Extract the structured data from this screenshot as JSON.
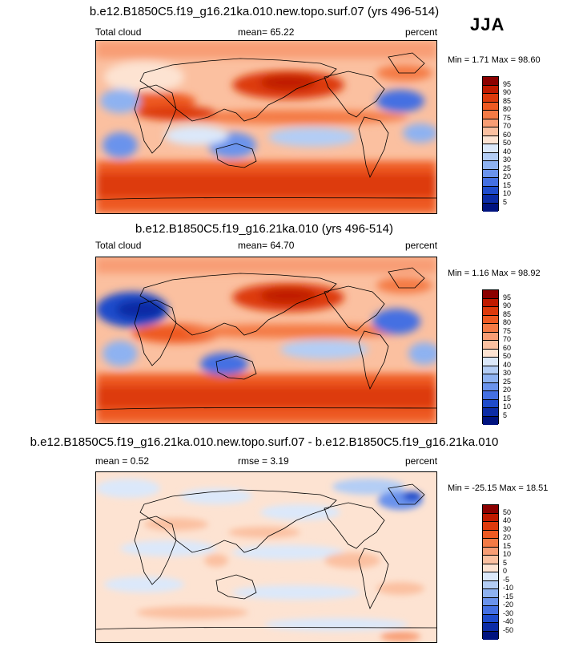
{
  "season": "JJA",
  "panels": [
    {
      "title": "b.e12.B1850C5.f19_g16.21ka.010.new.topo.surf.07 (yrs 496-514)",
      "left_label": "Total cloud",
      "center_label": "mean=  65.22",
      "right_label": "percent",
      "minmax": "Min =   1.71 Max =  98.60",
      "colorbar": {
        "labels": [
          "95",
          "90",
          "85",
          "80",
          "75",
          "70",
          "60",
          "50",
          "40",
          "30",
          "25",
          "20",
          "15",
          "10",
          "5"
        ],
        "colors": [
          "#8b0000",
          "#c01a00",
          "#dd3a0c",
          "#ee5a22",
          "#f47a45",
          "#f89d74",
          "#fbc0a0",
          "#fde3d2",
          "#dbe8fa",
          "#b3cdf5",
          "#8eb2f1",
          "#6a93ec",
          "#4470e2",
          "#1f4ccb",
          "#0c2ca5",
          "#00137f"
        ]
      }
    },
    {
      "title": "b.e12.B1850C5.f19_g16.21ka.010 (yrs 496-514)",
      "left_label": "Total cloud",
      "center_label": "mean=  64.70",
      "right_label": "percent",
      "minmax": "Min =   1.16 Max =  98.92",
      "colorbar": {
        "labels": [
          "95",
          "90",
          "85",
          "80",
          "75",
          "70",
          "60",
          "50",
          "40",
          "30",
          "25",
          "20",
          "15",
          "10",
          "5"
        ],
        "colors": [
          "#8b0000",
          "#c01a00",
          "#dd3a0c",
          "#ee5a22",
          "#f47a45",
          "#f89d74",
          "#fbc0a0",
          "#fde3d2",
          "#dbe8fa",
          "#b3cdf5",
          "#8eb2f1",
          "#6a93ec",
          "#4470e2",
          "#1f4ccb",
          "#0c2ca5",
          "#00137f"
        ]
      }
    },
    {
      "title": "b.e12.B1850C5.f19_g16.21ka.010.new.topo.surf.07 - b.e12.B1850C5.f19_g16.21ka.010",
      "left_label": "mean =   0.52",
      "center_label": "rmse =   3.19",
      "right_label": "percent",
      "minmax": "Min = -25.15 Max =  18.51",
      "colorbar": {
        "labels": [
          "50",
          "40",
          "30",
          "20",
          "15",
          "10",
          "5",
          "0",
          "-5",
          "-10",
          "-15",
          "-20",
          "-30",
          "-40",
          "-50"
        ],
        "colors": [
          "#8b0000",
          "#c01a00",
          "#dd3a0c",
          "#ee5a22",
          "#f47a45",
          "#f89d74",
          "#fbc0a0",
          "#fde3d2",
          "#dbe8fa",
          "#b3cdf5",
          "#8eb2f1",
          "#6a93ec",
          "#4470e2",
          "#1f4ccb",
          "#0c2ca5",
          "#00137f"
        ]
      }
    }
  ],
  "chart_data": [
    {
      "type": "heatmap",
      "title": "b.e12.B1850C5.f19_g16.21ka.010.new.topo.surf.07 (yrs 496-514)",
      "variable": "Total cloud",
      "units": "percent",
      "season": "JJA",
      "mean": 65.22,
      "min": 1.71,
      "max": 98.6,
      "contour_levels": [
        5,
        10,
        15,
        20,
        25,
        30,
        40,
        50,
        60,
        70,
        75,
        80,
        85,
        90,
        95
      ]
    },
    {
      "type": "heatmap",
      "title": "b.e12.B1850C5.f19_g16.21ka.010 (yrs 496-514)",
      "variable": "Total cloud",
      "units": "percent",
      "season": "JJA",
      "mean": 64.7,
      "min": 1.16,
      "max": 98.92,
      "contour_levels": [
        5,
        10,
        15,
        20,
        25,
        30,
        40,
        50,
        60,
        70,
        75,
        80,
        85,
        90,
        95
      ]
    },
    {
      "type": "heatmap",
      "title": "b.e12.B1850C5.f19_g16.21ka.010.new.topo.surf.07 - b.e12.B1850C5.f19_g16.21ka.010",
      "units": "percent",
      "season": "JJA",
      "mean": 0.52,
      "rmse": 3.19,
      "min": -25.15,
      "max": 18.51,
      "contour_levels": [
        -50,
        -40,
        -30,
        -20,
        -15,
        -10,
        -5,
        0,
        5,
        10,
        15,
        20,
        30,
        40,
        50
      ]
    }
  ]
}
